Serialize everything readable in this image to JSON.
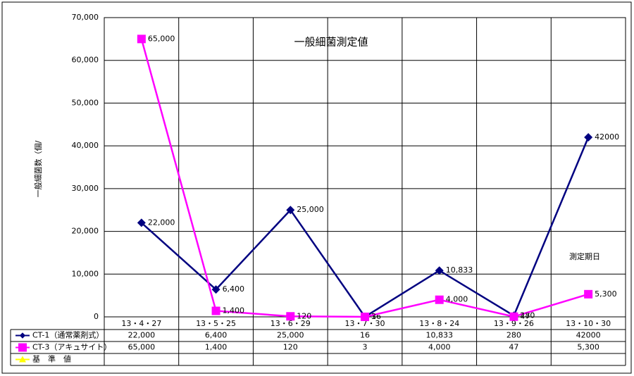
{
  "chart_data": {
    "type": "line",
    "title": "一般細菌測定値",
    "y_label": "一般細菌数（個/",
    "annotation": "測定期日",
    "categories": [
      "13・4・27",
      "13・5・25",
      "13・6・29",
      "13・7・30",
      "13・8・24",
      "13・9・26",
      "13・10・30"
    ],
    "series": [
      {
        "name": "CT-1（通常薬剤式）",
        "color": "#000080",
        "marker": "diamond",
        "values": [
          22000,
          6400,
          25000,
          16,
          10833,
          280,
          42000
        ],
        "value_labels": [
          "22,000",
          "6,400",
          "25,000",
          "16",
          "10,833",
          "280",
          "42000"
        ]
      },
      {
        "name": "CT-3（アキュサイト）",
        "color": "#ff00ff",
        "marker": "square",
        "values": [
          65000,
          1400,
          120,
          3,
          4000,
          47,
          5300
        ],
        "value_labels": [
          "65,000",
          "1,400",
          "120",
          "3",
          "4,000",
          "47",
          "5,300"
        ]
      },
      {
        "name": "基　準　値",
        "color": "#ffff00",
        "marker": "triangle",
        "values": [
          null,
          null,
          null,
          null,
          null,
          null,
          null
        ]
      }
    ],
    "ylim": [
      0,
      70000
    ],
    "yticks": [
      0,
      {
        "value": 10000,
        "label": "10,000"
      },
      {
        "value": 20000,
        "label": "20,000"
      },
      {
        "value": 30000,
        "label": "30,000"
      },
      {
        "value": 40000,
        "label": "40,000"
      },
      {
        "value": 50000,
        "label": "50,000"
      },
      {
        "value": 60000,
        "label": "60,000"
      },
      {
        "value": 70000,
        "label": "70,000"
      }
    ],
    "grid": true
  }
}
